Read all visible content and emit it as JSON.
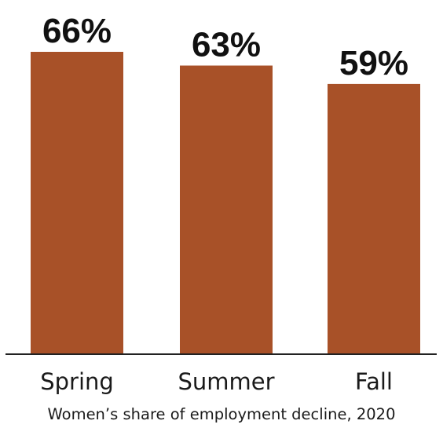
{
  "chart_data": {
    "type": "bar",
    "categories": [
      "Spring",
      "Summer",
      "Fall"
    ],
    "values": [
      66,
      63,
      59
    ],
    "value_labels": [
      "66%",
      "63%",
      "59%"
    ],
    "xlabel": "Women’s share of employment decline, 2020",
    "ylabel": "",
    "bar_color": "#a85128",
    "axis_color": "#222222",
    "grid": false
  }
}
